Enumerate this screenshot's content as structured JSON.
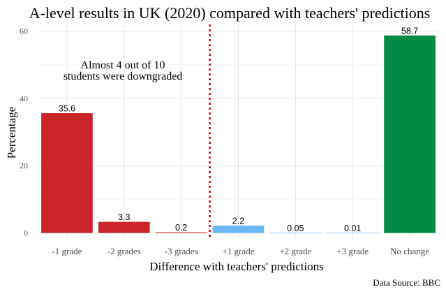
{
  "chart_data": {
    "type": "bar",
    "title": "A-level results in UK (2020) compared with teachers' predictions",
    "xlabel": "Difference with teachers' predictions",
    "ylabel": "Percentage",
    "categories": [
      "-1 grade",
      "-2 grades",
      "-3 grades",
      "+1 grade",
      "+2 grade",
      "+3 grade",
      "No change"
    ],
    "values": [
      35.6,
      3.3,
      0.2,
      2.2,
      0.05,
      0.01,
      58.7
    ],
    "value_labels": [
      "35.6",
      "3.3",
      "0.2",
      "2.2",
      "0.05",
      "0.01",
      "58.7"
    ],
    "bar_colors": [
      "#cc2529",
      "#cc2529",
      "#cc2529",
      "#6bb6f5",
      "#6bb6f5",
      "#6bb6f5",
      "#008b45"
    ],
    "ylim": [
      0,
      61
    ],
    "yticks": [
      0,
      20,
      40,
      60
    ],
    "grid": true,
    "reference_line": {
      "between_categories": [
        "-3 grades",
        "+1 grade"
      ],
      "color": "#cc2529",
      "style": "dotted"
    },
    "annotation_lines": [
      "Almost 4 out of 10",
      "students were downgraded"
    ],
    "caption": "Data Source: BBC"
  }
}
